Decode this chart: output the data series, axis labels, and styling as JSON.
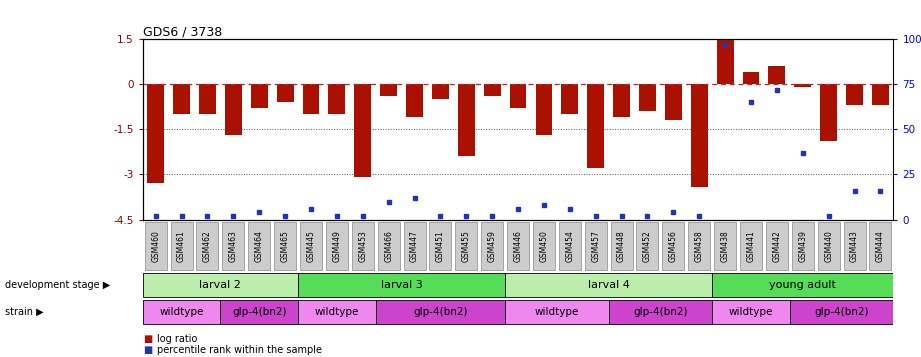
{
  "title": "GDS6 / 3738",
  "samples": [
    "GSM460",
    "GSM461",
    "GSM462",
    "GSM463",
    "GSM464",
    "GSM465",
    "GSM445",
    "GSM449",
    "GSM453",
    "GSM466",
    "GSM447",
    "GSM451",
    "GSM455",
    "GSM459",
    "GSM446",
    "GSM450",
    "GSM454",
    "GSM457",
    "GSM448",
    "GSM452",
    "GSM456",
    "GSM458",
    "GSM438",
    "GSM441",
    "GSM442",
    "GSM439",
    "GSM440",
    "GSM443",
    "GSM444"
  ],
  "log_ratios": [
    -3.3,
    -1.0,
    -1.0,
    -1.7,
    -0.8,
    -0.6,
    -1.0,
    -1.0,
    -3.1,
    -0.4,
    -1.1,
    -0.5,
    -2.4,
    -0.4,
    -0.8,
    -1.7,
    -1.0,
    -2.8,
    -1.1,
    -0.9,
    -1.2,
    -3.4,
    1.5,
    0.4,
    0.6,
    -0.1,
    -1.9,
    -0.7,
    -0.7
  ],
  "percentile_ranks": [
    2,
    2,
    2,
    2,
    4,
    2,
    6,
    2,
    2,
    10,
    12,
    2,
    2,
    2,
    6,
    8,
    6,
    2,
    2,
    2,
    4,
    2,
    97,
    65,
    72,
    37,
    2,
    16,
    16
  ],
  "dev_stage_groups": [
    {
      "label": "larval 2",
      "start": 0,
      "end": 6,
      "color": "#bbeeaa"
    },
    {
      "label": "larval 3",
      "start": 6,
      "end": 14,
      "color": "#55dd55"
    },
    {
      "label": "larval 4",
      "start": 14,
      "end": 22,
      "color": "#bbeeaa"
    },
    {
      "label": "young adult",
      "start": 22,
      "end": 29,
      "color": "#55dd55"
    }
  ],
  "strain_groups": [
    {
      "label": "wildtype",
      "start": 0,
      "end": 3,
      "color": "#ee88ee"
    },
    {
      "label": "glp-4(bn2)",
      "start": 3,
      "end": 6,
      "color": "#cc44cc"
    },
    {
      "label": "wildtype",
      "start": 6,
      "end": 9,
      "color": "#ee88ee"
    },
    {
      "label": "glp-4(bn2)",
      "start": 9,
      "end": 14,
      "color": "#cc44cc"
    },
    {
      "label": "wildtype",
      "start": 14,
      "end": 18,
      "color": "#ee88ee"
    },
    {
      "label": "glp-4(bn2)",
      "start": 18,
      "end": 22,
      "color": "#cc44cc"
    },
    {
      "label": "wildtype",
      "start": 22,
      "end": 25,
      "color": "#ee88ee"
    },
    {
      "label": "glp-4(bn2)",
      "start": 25,
      "end": 29,
      "color": "#cc44cc"
    }
  ],
  "ylim_left": [
    -4.5,
    1.5
  ],
  "ylim_right": [
    0,
    100
  ],
  "bar_color": "#aa1100",
  "dot_color": "#2233bb",
  "zero_line_color": "#cc2222",
  "grid_color": "#555555"
}
